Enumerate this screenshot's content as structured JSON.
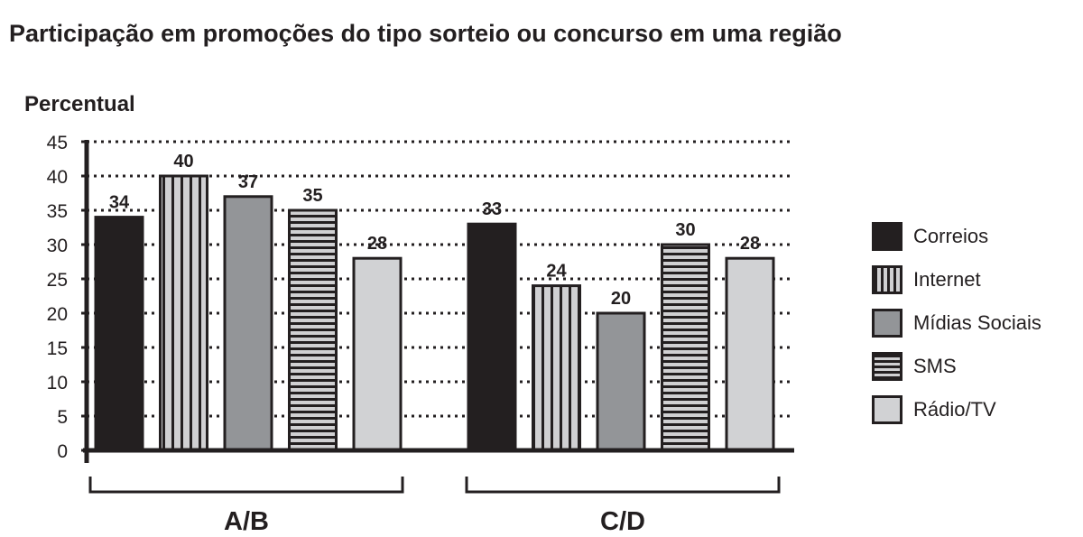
{
  "chart_data": {
    "type": "bar",
    "title": "Participação em promoções do tipo sorteio ou concurso em uma região",
    "xlabel": "",
    "ylabel": "Percentual",
    "ylim": [
      0,
      45
    ],
    "yticks": [
      0,
      5,
      10,
      15,
      20,
      25,
      30,
      35,
      40,
      45
    ],
    "grid": "dotted horizontal",
    "legend_position": "right",
    "categories": [
      "A/B",
      "C/D"
    ],
    "series": [
      {
        "name": "Correios",
        "values": [
          34,
          33
        ],
        "pattern": "solid-dark",
        "color": "#231f20"
      },
      {
        "name": "Internet",
        "values": [
          40,
          24
        ],
        "pattern": "vertical-stripes",
        "color": "#d0d0d2"
      },
      {
        "name": "Mídias Sociais",
        "values": [
          37,
          20
        ],
        "pattern": "solid-mid",
        "color": "#939598"
      },
      {
        "name": "SMS",
        "values": [
          35,
          30
        ],
        "pattern": "horizontal-stripes",
        "color": "#d0d0d2"
      },
      {
        "name": "Rádio/TV",
        "values": [
          28,
          28
        ],
        "pattern": "solid-light",
        "color": "#d1d2d4"
      }
    ]
  },
  "title": "Participação em promoções do tipo sorteio ou concurso em uma região",
  "ylabel": "Percentual",
  "legend": [
    {
      "label": "Correios",
      "swatch": "sw-solid-dark"
    },
    {
      "label": "Internet",
      "swatch": "sw-vertical"
    },
    {
      "label": "Mídias Sociais",
      "swatch": "sw-mid"
    },
    {
      "label": "SMS",
      "swatch": "sw-horizontal"
    },
    {
      "label": "Rádio/TV",
      "swatch": "sw-light"
    }
  ]
}
